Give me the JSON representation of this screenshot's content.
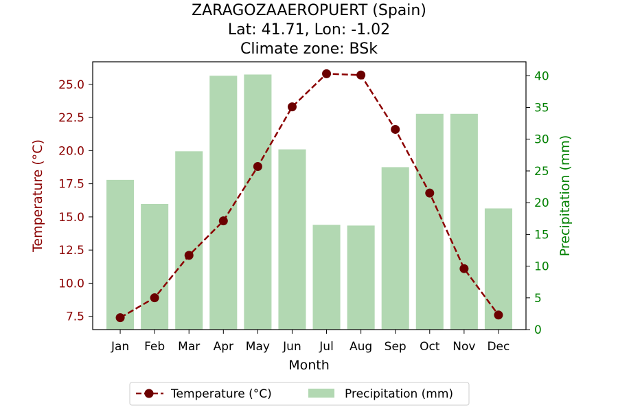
{
  "chart_data": {
    "type": "bar+line",
    "title_lines": [
      "ZARAGOZAAEROPUERT (Spain)",
      "Lat: 41.71, Lon: -1.02",
      "Climate zone: BSk"
    ],
    "xlabel": "Month",
    "ylabel_left": "Temperature (°C)",
    "ylabel_right": "Precipitation (mm)",
    "categories": [
      "Jan",
      "Feb",
      "Mar",
      "Apr",
      "May",
      "Jun",
      "Jul",
      "Aug",
      "Sep",
      "Oct",
      "Nov",
      "Dec"
    ],
    "temperature": [
      7.4,
      8.9,
      12.1,
      14.7,
      18.8,
      23.3,
      25.8,
      25.7,
      21.6,
      16.8,
      11.1,
      7.6
    ],
    "precipitation": [
      23.6,
      19.8,
      28.1,
      40.0,
      40.2,
      28.4,
      16.5,
      16.4,
      25.6,
      34.0,
      34.0,
      19.1
    ],
    "ylim_left": [
      6.5,
      26.7
    ],
    "ylim_right": [
      0,
      42.2
    ],
    "yticks_left": [
      "7.5",
      "10.0",
      "12.5",
      "15.0",
      "17.5",
      "20.0",
      "22.5",
      "25.0"
    ],
    "yticks_right": [
      "0",
      "5",
      "10",
      "15",
      "20",
      "25",
      "30",
      "35",
      "40"
    ],
    "legend": {
      "placement": "bottom-center",
      "temperature_label": "Temperature (°C)",
      "precipitation_label": "Precipitation (mm)"
    },
    "colors": {
      "temperature_line": "#8b0000",
      "temperature_marker": "#6b0000",
      "precipitation_bar": "#b2d8b2",
      "left_axis": "#8b0000",
      "right_axis": "#008000"
    }
  }
}
